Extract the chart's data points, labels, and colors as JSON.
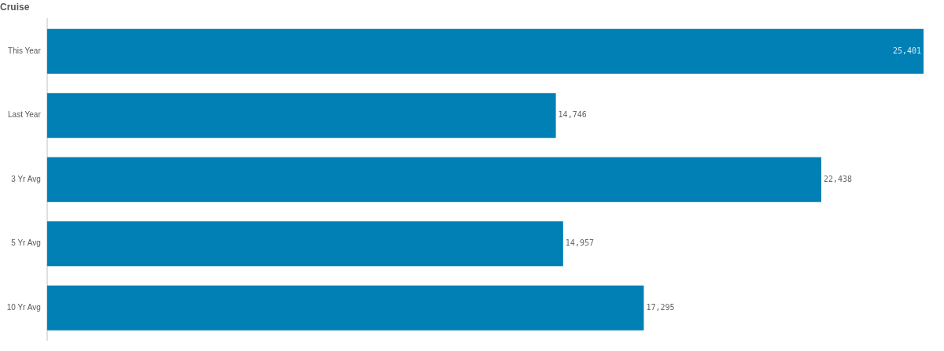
{
  "chart_data": {
    "type": "bar",
    "orientation": "horizontal",
    "title": "Cruise",
    "categories": [
      "This Year",
      "Last Year",
      "3 Yr Avg",
      "5 Yr Avg",
      "10 Yr Avg"
    ],
    "values": [
      25401,
      14746,
      22438,
      14957,
      17295
    ],
    "value_labels": [
      "25,401",
      "14,746",
      "22,438",
      "14,957",
      "17,295"
    ],
    "color": "#0080b5",
    "xlim": [
      0,
      25401
    ],
    "grid": false,
    "tick_labels": "y"
  }
}
